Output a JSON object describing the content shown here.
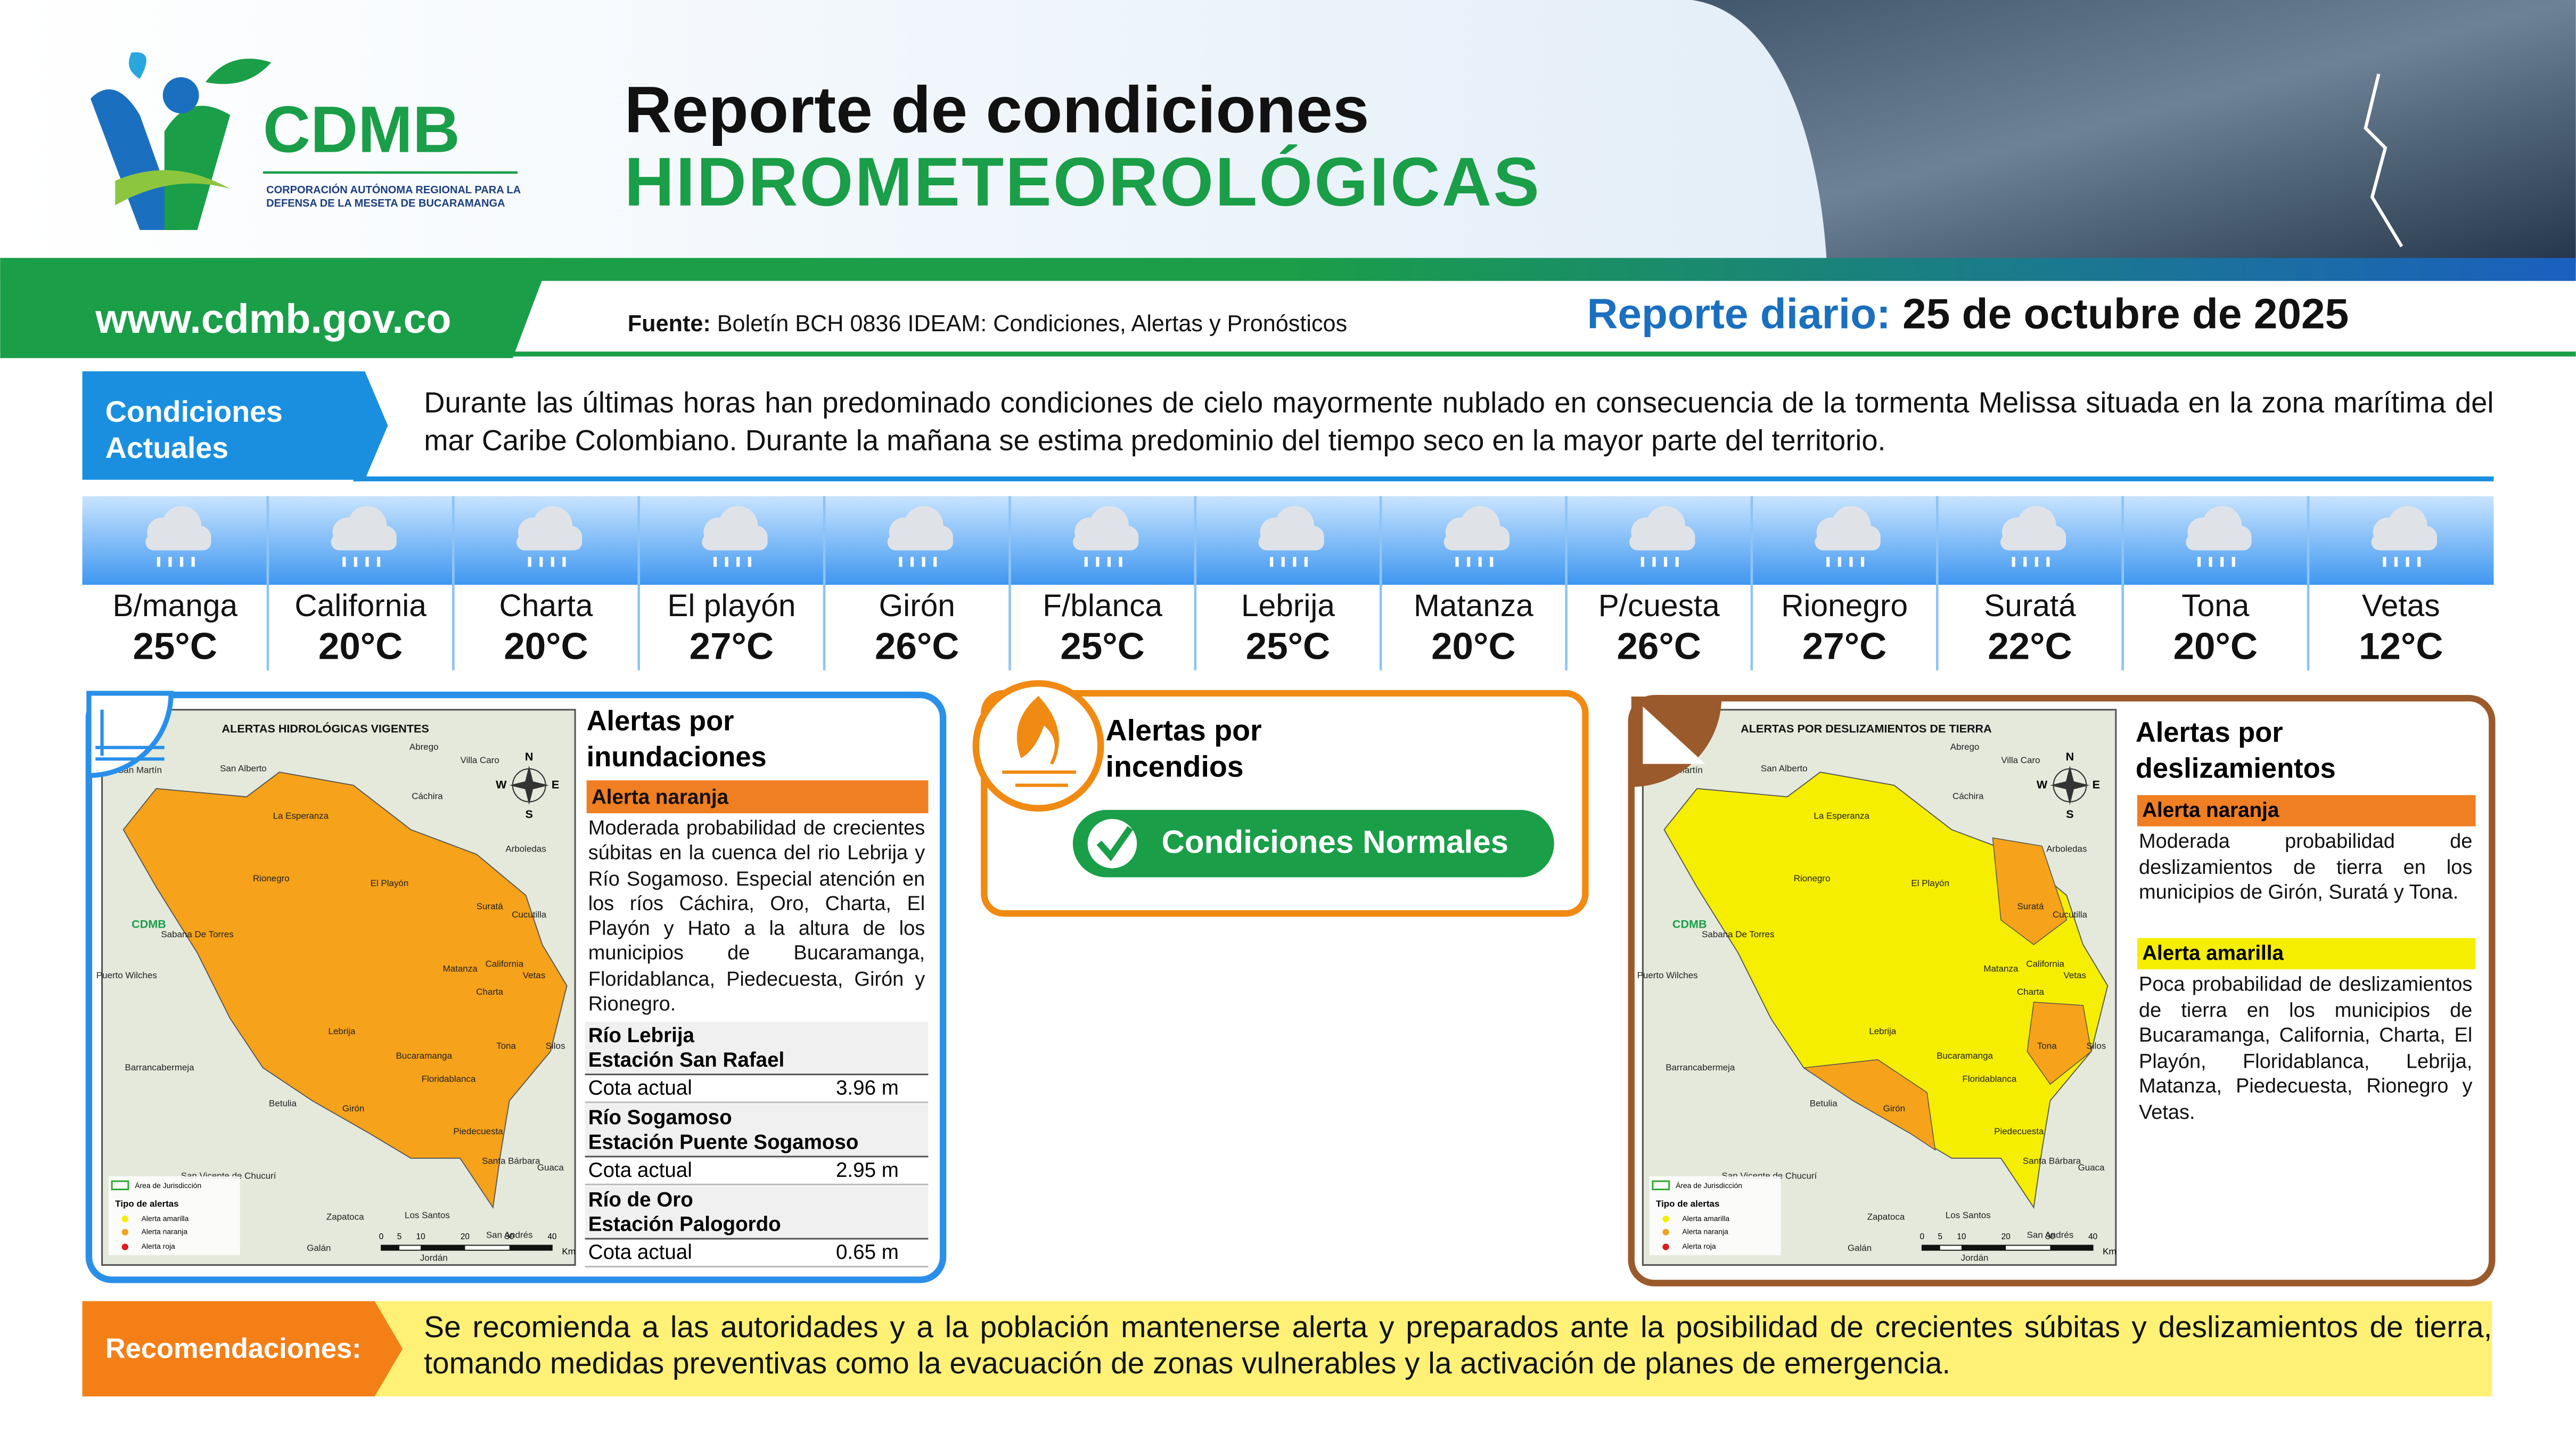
{
  "header": {
    "logo_name": "CDMB",
    "logo_subtitle": [
      "CORPORACIÓN AUTÓNOMA REGIONAL PARA LA",
      "DEFENSA DE LA MESETA DE BUCARAMANGA"
    ],
    "title_line1": "Reporte de condiciones",
    "title_line2": "HIDROMETEOROLÓGICAS",
    "website": "www.cdmb.gov.co",
    "source_label": "Fuente:",
    "source": "Boletín BCH 0836 IDEAM: Condiciones, Alertas y Pronósticos",
    "report_label": "Reporte diario:",
    "report_date": "25 de octubre de 2025"
  },
  "conditions": {
    "label_lines": [
      "Condiciones",
      "Actuales"
    ],
    "text": "Durante las últimas horas han predominado condiciones de cielo mayormente nublado en consecuencia de la tormenta Melissa situada en la zona marítima del mar Caribe Colombiano. Durante la mañana se estima predominio del tiempo seco en la mayor parte del territorio."
  },
  "cities": [
    {
      "name": "B/manga",
      "temp": "25°C"
    },
    {
      "name": "California",
      "temp": "20°C"
    },
    {
      "name": "Charta",
      "temp": "20°C"
    },
    {
      "name": "El playón",
      "temp": "27°C"
    },
    {
      "name": "Girón",
      "temp": "26°C"
    },
    {
      "name": "F/blanca",
      "temp": "25°C"
    },
    {
      "name": "Lebrija",
      "temp": "25°C"
    },
    {
      "name": "Matanza",
      "temp": "20°C"
    },
    {
      "name": "P/cuesta",
      "temp": "26°C"
    },
    {
      "name": "Rionegro",
      "temp": "27°C"
    },
    {
      "name": "Suratá",
      "temp": "22°C"
    },
    {
      "name": "Tona",
      "temp": "20°C"
    },
    {
      "name": "Vetas",
      "temp": "12°C"
    }
  ],
  "flood": {
    "map_title": "ALERTAS HIDROLÓGICAS VIGENTES",
    "title_lines": [
      "Alertas por",
      "inundaciones"
    ],
    "alert_level": "Alerta naranja",
    "description": "Moderada probabilidad de crecientes súbitas en la cuenca del rio Lebrija y Río Sogamoso. Especial atención en los ríos Cáchira, Oro, Charta, El Playón y Hato a la altura de los municipios de Bucaramanga, Floridablanca, Piedecuesta, Girón y Rionegro.",
    "stations": [
      {
        "river": "Río Lebrija",
        "station": "Estación San Rafael",
        "label": "Cota actual",
        "level": "3.96 m"
      },
      {
        "river": "Río Sogamoso",
        "station": "Estación Puente Sogamoso",
        "label": "Cota actual",
        "level": "2.95 m"
      },
      {
        "river": "Río de Oro",
        "station": "Estación Palogordo",
        "label": "Cota actual",
        "level": "0.65 m"
      }
    ]
  },
  "fire": {
    "title_lines": [
      "Alertas por",
      "incendios"
    ],
    "status": "Condiciones Normales"
  },
  "landslide": {
    "map_title": "ALERTAS POR DESLIZAMIENTOS DE TIERRA",
    "title_lines": [
      "Alertas por",
      "deslizamientos"
    ],
    "alerts": [
      {
        "level": "Alerta naranja",
        "description": "Moderada probabilidad de deslizamientos de tierra en los municipios de Girón, Suratá y Tona."
      },
      {
        "level": "Alerta amarilla",
        "description": "Poca probabilidad de deslizamientos de tierra en los municipios de Bucaramanga, California, Charta, El Playón, Floridablanca, Lebrija, Matanza, Piedecuesta, Rionegro y Vetas."
      }
    ]
  },
  "maps": {
    "places": [
      "San Martín",
      "Abrego",
      "Villa Caro",
      "San Alberto",
      "Cáchira",
      "La Esperanza",
      "Arboledas",
      "Rionegro",
      "El Playón",
      "Suratá",
      "Cucutilla",
      "Sabana De Torres",
      "Matanza",
      "California",
      "Vetas",
      "Puerto Wilches",
      "Charta",
      "Lebrija",
      "Tona",
      "Silos",
      "Barrancabermeja",
      "Bucaramanga",
      "Floridablanca",
      "Betulia",
      "Girón",
      "Piedecuesta",
      "Zapatoca",
      "Santa Bárbara",
      "Guaca",
      "San Vicente de Chucurí",
      "Los Santos",
      "San Andrés",
      "Galán",
      "Jordán"
    ],
    "legend": [
      "Área de Jurisdicción",
      "Tipo de alertas",
      "Alerta amarilla",
      "Alerta naranja",
      "Alerta roja"
    ],
    "scale": [
      "0",
      "5",
      "10",
      "20",
      "30",
      "40"
    ],
    "scale_unit": "Km",
    "compass": [
      "N",
      "S",
      "E",
      "W"
    ]
  },
  "recommendations": {
    "label": "Recomendaciones:",
    "text": "Se recomienda a las autoridades y a la población mantenerse alerta y preparados ante la posibilidad de crecientes súbitas y deslizamientos de tierra, tomando medidas preventivas como la evacuación de zonas vulnerables y la activación de planes de emergencia."
  }
}
